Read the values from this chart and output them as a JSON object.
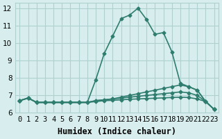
{
  "xlabel": "Humidex (Indice chaleur)",
  "bg_color": "#d8eeee",
  "grid_color": "#b0d0d0",
  "line_color": "#2e7d6e",
  "xlim": [
    -0.5,
    23.5
  ],
  "ylim": [
    6.0,
    12.3
  ],
  "yticks": [
    6,
    7,
    8,
    9,
    10,
    11,
    12
  ],
  "xtick_labels": [
    "0",
    "1",
    "2",
    "3",
    "4",
    "5",
    "6",
    "7",
    "8",
    "9",
    "10",
    "11",
    "12",
    "13",
    "14",
    "15",
    "16",
    "17",
    "18",
    "19",
    "20",
    "21",
    "22",
    "23"
  ],
  "lines": [
    [
      6.7,
      6.85,
      6.6,
      6.6,
      6.6,
      6.6,
      6.6,
      6.6,
      6.6,
      7.9,
      9.4,
      10.4,
      11.4,
      11.6,
      12.0,
      11.35,
      10.5,
      10.6,
      9.5,
      7.7,
      7.5,
      7.3,
      6.65,
      6.2
    ],
    [
      6.7,
      6.85,
      6.6,
      6.6,
      6.6,
      6.6,
      6.6,
      6.6,
      6.6,
      6.7,
      6.75,
      6.8,
      6.9,
      7.0,
      7.1,
      7.2,
      7.3,
      7.4,
      7.5,
      7.6,
      7.5,
      7.3,
      6.65,
      6.2
    ],
    [
      6.7,
      6.85,
      6.6,
      6.6,
      6.6,
      6.6,
      6.6,
      6.6,
      6.6,
      6.7,
      6.75,
      6.8,
      6.85,
      6.9,
      6.95,
      7.0,
      7.05,
      7.1,
      7.15,
      7.2,
      7.15,
      7.0,
      6.65,
      6.2
    ],
    [
      6.7,
      6.85,
      6.6,
      6.6,
      6.6,
      6.6,
      6.6,
      6.6,
      6.6,
      6.65,
      6.7,
      6.72,
      6.75,
      6.78,
      6.8,
      6.82,
      6.84,
      6.86,
      6.88,
      6.9,
      6.88,
      6.8,
      6.65,
      6.2
    ]
  ],
  "font_size": 8.5,
  "tick_font_size": 7.5,
  "marker": "D",
  "marker_size": 2.5,
  "line_width": 1.2
}
